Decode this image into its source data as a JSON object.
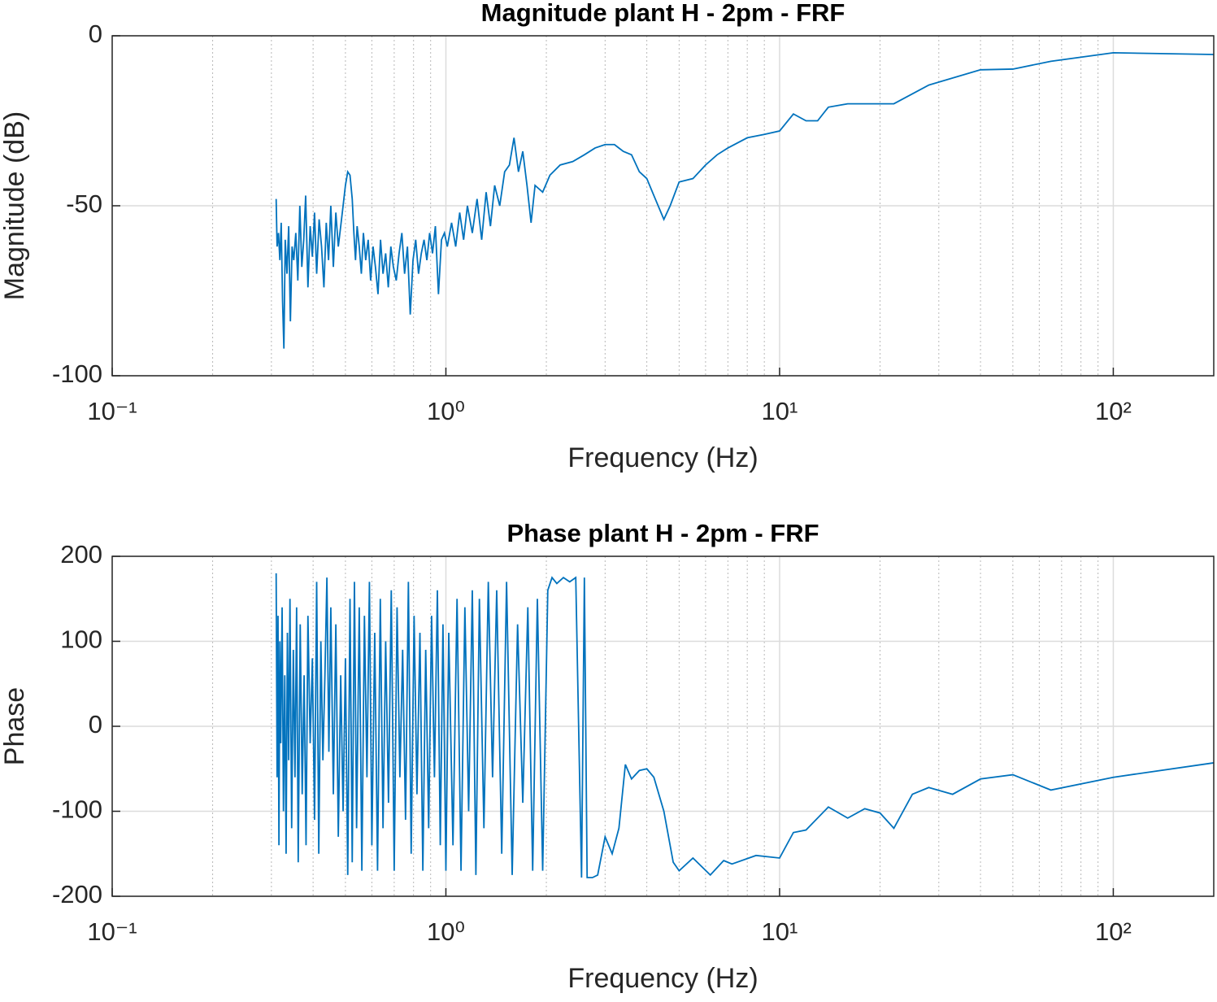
{
  "chart_data": [
    {
      "type": "line",
      "title": "Magnitude plant H - 2pm - FRF",
      "xlabel": "Frequency (Hz)",
      "ylabel": "Magnitude (dB)",
      "xscale": "log",
      "grid": true,
      "color": "#0072bd",
      "xlim": [
        0.1,
        200
      ],
      "ylim": [
        -100,
        0
      ],
      "xticks": [
        {
          "value": 0.1,
          "label": "10⁻¹"
        },
        {
          "value": 1,
          "label": "10⁰"
        },
        {
          "value": 10,
          "label": "10¹"
        },
        {
          "value": 100,
          "label": "10²"
        }
      ],
      "xminorticks": [
        0.2,
        0.3,
        0.4,
        0.5,
        0.6,
        0.7,
        0.8,
        0.9,
        2,
        3,
        4,
        5,
        6,
        7,
        8,
        9,
        20,
        30,
        40,
        50,
        60,
        70,
        80,
        90
      ],
      "yticks": [
        -100,
        -50,
        0
      ],
      "x": [
        0.31,
        0.312,
        0.315,
        0.318,
        0.321,
        0.324,
        0.327,
        0.33,
        0.334,
        0.338,
        0.342,
        0.346,
        0.35,
        0.355,
        0.36,
        0.365,
        0.37,
        0.375,
        0.38,
        0.386,
        0.392,
        0.398,
        0.404,
        0.41,
        0.417,
        0.424,
        0.431,
        0.438,
        0.445,
        0.452,
        0.46,
        0.468,
        0.476,
        0.484,
        0.492,
        0.5,
        0.508,
        0.516,
        0.524,
        0.53,
        0.536,
        0.542,
        0.55,
        0.558,
        0.566,
        0.575,
        0.585,
        0.595,
        0.605,
        0.615,
        0.626,
        0.637,
        0.648,
        0.66,
        0.672,
        0.684,
        0.696,
        0.71,
        0.724,
        0.738,
        0.752,
        0.767,
        0.782,
        0.797,
        0.812,
        0.828,
        0.844,
        0.86,
        0.877,
        0.894,
        0.912,
        0.93,
        0.95,
        0.97,
        0.99,
        1.01,
        1.04,
        1.07,
        1.1,
        1.13,
        1.16,
        1.2,
        1.24,
        1.28,
        1.32,
        1.36,
        1.4,
        1.45,
        1.5,
        1.55,
        1.6,
        1.65,
        1.7,
        1.75,
        1.8,
        1.85,
        1.95,
        2.05,
        2.2,
        2.4,
        2.6,
        2.8,
        3.0,
        3.2,
        3.4,
        3.6,
        3.8,
        4.0,
        4.2,
        4.5,
        4.7,
        5.0,
        5.5,
        6.0,
        6.5,
        7.0,
        8.0,
        9.0,
        10,
        11,
        12,
        13,
        14,
        16,
        19,
        22,
        28,
        40,
        50,
        65,
        100,
        200
      ],
      "values": [
        -48,
        -62,
        -58,
        -66,
        -55,
        -78,
        -92,
        -60,
        -70,
        -56,
        -84,
        -62,
        -66,
        -58,
        -72,
        -50,
        -68,
        -60,
        -47,
        -74,
        -56,
        -65,
        -52,
        -70,
        -54,
        -62,
        -74,
        -55,
        -66,
        -50,
        -68,
        -52,
        -62,
        -56,
        -50,
        -44,
        -40,
        -41,
        -48,
        -58,
        -66,
        -56,
        -62,
        -70,
        -58,
        -66,
        -60,
        -72,
        -62,
        -68,
        -76,
        -60,
        -70,
        -64,
        -74,
        -62,
        -68,
        -72,
        -64,
        -58,
        -70,
        -62,
        -82,
        -66,
        -60,
        -70,
        -64,
        -60,
        -66,
        -58,
        -64,
        -56,
        -76,
        -60,
        -58,
        -62,
        -55,
        -62,
        -52,
        -60,
        -50,
        -58,
        -48,
        -60,
        -46,
        -56,
        -44,
        -50,
        -40,
        -38,
        -30,
        -40,
        -34,
        -44,
        -55,
        -44,
        -46,
        -41,
        -38,
        -37,
        -35,
        -33,
        -32,
        -32,
        -34,
        -35,
        -40,
        -42,
        -47,
        -54,
        -50,
        -43,
        -42,
        -38,
        -35,
        -33,
        -30,
        -29,
        -28,
        -23,
        -25,
        -25,
        -21,
        -20,
        -20,
        -20,
        -14.5,
        -10,
        -9.8,
        -7.5,
        -5,
        -5.5
      ]
    },
    {
      "type": "line",
      "title": "Phase plant H - 2pm - FRF",
      "xlabel": "Frequency (Hz)",
      "ylabel": "Phase",
      "xscale": "log",
      "grid": true,
      "color": "#0072bd",
      "xlim": [
        0.1,
        200
      ],
      "ylim": [
        -200,
        200
      ],
      "xticks": [
        {
          "value": 0.1,
          "label": "10⁻¹"
        },
        {
          "value": 1,
          "label": "10⁰"
        },
        {
          "value": 10,
          "label": "10¹"
        },
        {
          "value": 100,
          "label": "10²"
        }
      ],
      "xminorticks": [
        0.2,
        0.3,
        0.4,
        0.5,
        0.6,
        0.7,
        0.8,
        0.9,
        2,
        3,
        4,
        5,
        6,
        7,
        8,
        9,
        20,
        30,
        40,
        50,
        60,
        70,
        80,
        90
      ],
      "yticks": [
        -200,
        -100,
        0,
        100,
        200
      ],
      "x": [
        0.31,
        0.312,
        0.314,
        0.316,
        0.318,
        0.32,
        0.323,
        0.326,
        0.329,
        0.332,
        0.335,
        0.338,
        0.341,
        0.345,
        0.349,
        0.353,
        0.357,
        0.361,
        0.366,
        0.371,
        0.376,
        0.381,
        0.386,
        0.392,
        0.398,
        0.404,
        0.41,
        0.416,
        0.422,
        0.428,
        0.434,
        0.44,
        0.446,
        0.452,
        0.46,
        0.468,
        0.476,
        0.484,
        0.492,
        0.5,
        0.508,
        0.516,
        0.524,
        0.532,
        0.54,
        0.55,
        0.56,
        0.57,
        0.58,
        0.59,
        0.6,
        0.612,
        0.624,
        0.636,
        0.648,
        0.66,
        0.673,
        0.686,
        0.7,
        0.714,
        0.728,
        0.742,
        0.757,
        0.772,
        0.787,
        0.803,
        0.819,
        0.836,
        0.853,
        0.87,
        0.888,
        0.906,
        0.924,
        0.943,
        0.962,
        0.98,
        1.0,
        1.02,
        1.05,
        1.08,
        1.11,
        1.14,
        1.17,
        1.2,
        1.23,
        1.26,
        1.3,
        1.34,
        1.38,
        1.42,
        1.47,
        1.52,
        1.58,
        1.64,
        1.7,
        1.76,
        1.82,
        1.88,
        1.95,
        2.02,
        2.08,
        2.15,
        2.25,
        2.35,
        2.45,
        2.55,
        2.6,
        2.65,
        2.75,
        2.85,
        3.0,
        3.15,
        3.3,
        3.45,
        3.6,
        3.8,
        4.0,
        4.2,
        4.5,
        4.8,
        5.0,
        5.5,
        6.2,
        6.8,
        7.2,
        8.5,
        10,
        11,
        12,
        14,
        16,
        18,
        20,
        22,
        25,
        28,
        33,
        40,
        50,
        65,
        100,
        200
      ],
      "values": [
        180,
        -60,
        130,
        -140,
        100,
        -20,
        140,
        -100,
        60,
        -150,
        110,
        -40,
        150,
        -120,
        90,
        -60,
        140,
        -160,
        120,
        -80,
        60,
        -140,
        130,
        -20,
        80,
        -110,
        170,
        -150,
        100,
        -40,
        60,
        175,
        -30,
        140,
        -80,
        120,
        -130,
        60,
        -100,
        80,
        -175,
        150,
        -160,
        170,
        -120,
        140,
        -170,
        130,
        -60,
        170,
        -140,
        110,
        -170,
        150,
        -120,
        100,
        -90,
        160,
        -170,
        140,
        -60,
        90,
        -110,
        170,
        -150,
        130,
        -80,
        110,
        -170,
        90,
        -120,
        130,
        -60,
        160,
        -140,
        120,
        -170,
        110,
        -140,
        150,
        -170,
        140,
        -100,
        160,
        -175,
        150,
        -120,
        170,
        -60,
        160,
        -150,
        170,
        -175,
        120,
        -90,
        140,
        -170,
        150,
        -170,
        160,
        175,
        168,
        175,
        170,
        175,
        -178,
        175,
        -178,
        -178,
        -175,
        -130,
        -150,
        -120,
        -45,
        -62,
        -52,
        -50,
        -60,
        -100,
        -160,
        -170,
        -155,
        -175,
        -158,
        -162,
        -152,
        -155,
        -125,
        -122,
        -95,
        -108,
        -97,
        -102,
        -120,
        -80,
        -72,
        -80,
        -62,
        -57,
        -75,
        -60,
        -43
      ]
    }
  ]
}
